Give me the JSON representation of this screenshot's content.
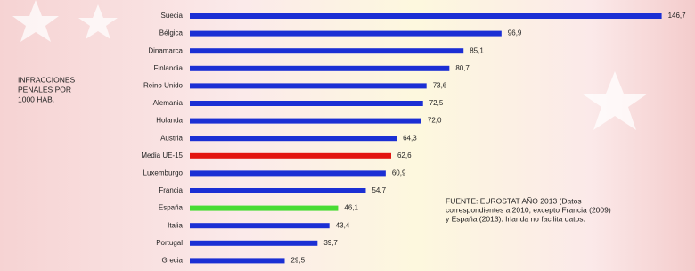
{
  "chart_data": {
    "type": "hbar",
    "side_label": [
      "INFRACCIONES",
      "PENALES POR",
      "1000 HAB."
    ],
    "note": [
      "FUENTE: EUROSTAT AÑO 2013 (Datos",
      "correspondientes a 2010, excepto Francia (2009)",
      "y España (2013). Irlanda no facilita datos."
    ],
    "categories": [
      "Suecia",
      "Bélgica",
      "Dinamarca",
      "Finlandia",
      "Reino Unido",
      "Alemania",
      "Holanda",
      "Austria",
      "Media UE-15",
      "Luxemburgo",
      "Francia",
      "España",
      "Italia",
      "Portugal",
      "Grecia"
    ],
    "values": [
      146.7,
      96.9,
      85.1,
      80.7,
      73.6,
      72.5,
      72.0,
      64.3,
      62.6,
      60.9,
      54.7,
      46.1,
      43.4,
      39.7,
      29.5
    ],
    "value_labels": [
      "146,7",
      "96,9",
      "85,1",
      "80,7",
      "73,6",
      "72,5",
      "72,0",
      "64,3",
      "62,6",
      "60,9",
      "54,7",
      "46,1",
      "43,4",
      "39,7",
      "29,5"
    ],
    "colors": [
      "#1b2fd4",
      "#1b2fd4",
      "#1b2fd4",
      "#1b2fd4",
      "#1b2fd4",
      "#1b2fd4",
      "#1b2fd4",
      "#1b2fd4",
      "#e3140f",
      "#1b2fd4",
      "#1b2fd4",
      "#48dc34",
      "#1b2fd4",
      "#1b2fd4",
      "#1b2fd4"
    ]
  }
}
